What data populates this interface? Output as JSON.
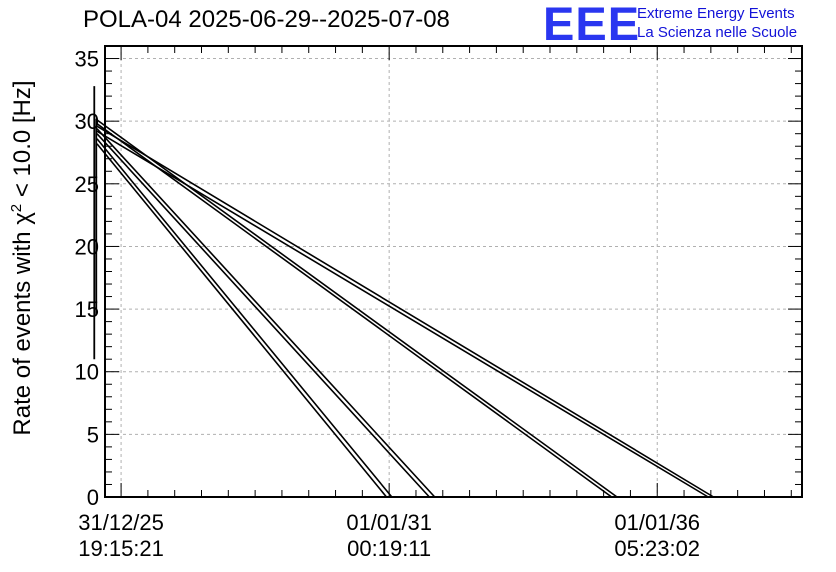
{
  "header": {
    "title": "POLA-04 2025-06-29--2025-07-08",
    "logo_text": "EEE",
    "logo_line1": "Extreme Energy Events",
    "logo_line2": "La Scienza nelle Scuole",
    "logo_color": "#2a36f0"
  },
  "chart_data": {
    "type": "line",
    "title": "POLA-04 2025-06-29--2025-07-08",
    "ylabel_prefix": "Rate of events with ",
    "ylabel_symbol": "χ",
    "ylabel_sup": "2",
    "ylabel_suffix": " < 10.0 [Hz]",
    "xlabel": "",
    "ylim": [
      0,
      36
    ],
    "yticks": [
      0,
      5,
      10,
      15,
      20,
      25,
      30,
      35
    ],
    "ytick_labels": [
      "0",
      "5",
      "10",
      "15",
      "20",
      "25",
      "30",
      "35"
    ],
    "xlim_years": [
      2025.7,
      2038.7
    ],
    "xtick_positions_years": [
      2026.0,
      2031.0,
      2036.0
    ],
    "xtick_labels": [
      {
        "date": "31/12/25",
        "time": "19:15:21"
      },
      {
        "date": "01/01/31",
        "time": "00:19:11"
      },
      {
        "date": "01/01/36",
        "time": "05:23:02"
      }
    ],
    "grid": true,
    "errorbar": {
      "x": 2025.5,
      "y_low": 11,
      "y_high": 32.8
    },
    "errorbar2": {
      "x": 2025.5,
      "y_low": 14.6,
      "y_high": 30.2
    },
    "series": [
      {
        "name": "s1",
        "start": [
          2025.55,
          28.2
        ],
        "end": [
          2030.95,
          0
        ]
      },
      {
        "name": "s2",
        "start": [
          2025.55,
          28.6
        ],
        "end": [
          2031.05,
          0
        ]
      },
      {
        "name": "s3",
        "start": [
          2025.55,
          29.0
        ],
        "end": [
          2031.75,
          0
        ]
      },
      {
        "name": "s4",
        "start": [
          2025.55,
          29.4
        ],
        "end": [
          2031.85,
          0
        ]
      },
      {
        "name": "s5",
        "start": [
          2025.55,
          29.8
        ],
        "end": [
          2035.15,
          0
        ]
      },
      {
        "name": "s6",
        "start": [
          2025.55,
          30.1
        ],
        "end": [
          2035.25,
          0
        ]
      },
      {
        "name": "s7",
        "start": [
          2025.55,
          29.2
        ],
        "end": [
          2036.95,
          0
        ]
      },
      {
        "name": "s8",
        "start": [
          2025.55,
          29.6
        ],
        "end": [
          2037.05,
          0
        ]
      }
    ],
    "line_color": "#000000",
    "grid_color": "#b0b0b0"
  }
}
